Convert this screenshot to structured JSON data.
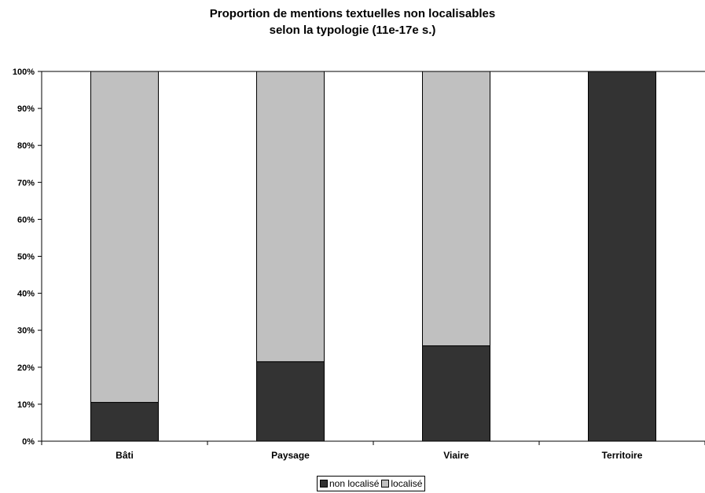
{
  "chart_data": {
    "type": "bar",
    "stacked": true,
    "percent": true,
    "title": "Proportion de mentions textuelles non localisables",
    "subtitle": "selon la typologie (11e-17e s.)",
    "categories": [
      "Bâti",
      "Paysage",
      "Viaire",
      "Territoire"
    ],
    "series": [
      {
        "name": "non localisé",
        "values": [
          10.5,
          21.5,
          25.8,
          100
        ],
        "color": "#333333"
      },
      {
        "name": "localisé",
        "values": [
          89.5,
          78.5,
          74.2,
          0
        ],
        "color": "#c0c0c0"
      }
    ],
    "ylim": [
      0,
      100
    ],
    "yticks": [
      "0%",
      "10%",
      "20%",
      "30%",
      "40%",
      "50%",
      "60%",
      "70%",
      "80%",
      "90%",
      "100%"
    ],
    "grid": false,
    "legend_position": "bottom"
  }
}
